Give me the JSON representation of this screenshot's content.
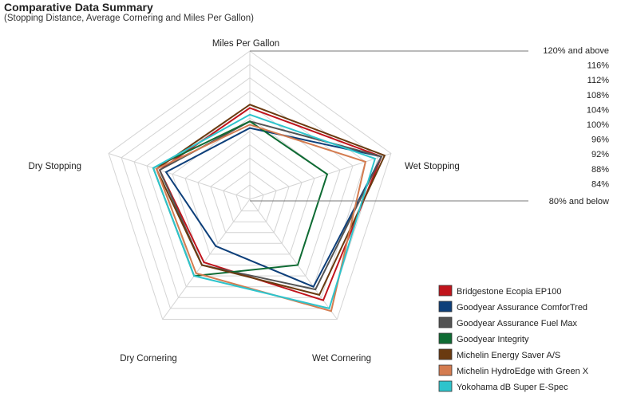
{
  "chart_data": {
    "type": "radar",
    "title": "Comparative Data Summary",
    "subtitle": "(Stopping Distance, Average Cornering and Miles Per Gallon)",
    "axes": [
      "Miles Per Gallon",
      "Wet Stopping",
      "Wet Cornering",
      "Dry Cornering",
      "Dry Stopping"
    ],
    "scale": {
      "min": 80,
      "max": 120,
      "ticks": [
        "120% and above",
        "116%",
        "112%",
        "108%",
        "104%",
        "100%",
        "96%",
        "92%",
        "88%",
        "84%",
        "80% and below"
      ]
    },
    "series": [
      {
        "name": "Bridgestone Ecopia EP100",
        "color": "#c0141c",
        "values": [
          103,
          117,
          113,
          99,
          104
        ]
      },
      {
        "name": "Goodyear Assurance ComforTred",
        "color": "#0d3f7a",
        "values": [
          97,
          117,
          108,
          93,
          102
        ]
      },
      {
        "name": "Goodyear Assurance Fuel Max",
        "color": "#545454",
        "values": [
          99,
          117,
          109,
          100,
          104
        ]
      },
      {
        "name": "Goodyear Integrity",
        "color": "#0e6b33",
        "values": [
          99,
          100,
          100,
          104,
          106
        ]
      },
      {
        "name": "Michelin Energy Saver A/S",
        "color": "#6a3a10",
        "values": [
          104,
          118,
          111,
          100,
          105
        ]
      },
      {
        "name": "Michelin HydroEdge with Green X",
        "color": "#d47c50",
        "values": [
          98,
          112,
          117,
          103,
          105
        ]
      },
      {
        "name": "Yokohama dB Super E-Spec",
        "color": "#2ec4cc",
        "values": [
          101,
          115,
          116,
          104,
          106
        ]
      }
    ]
  }
}
